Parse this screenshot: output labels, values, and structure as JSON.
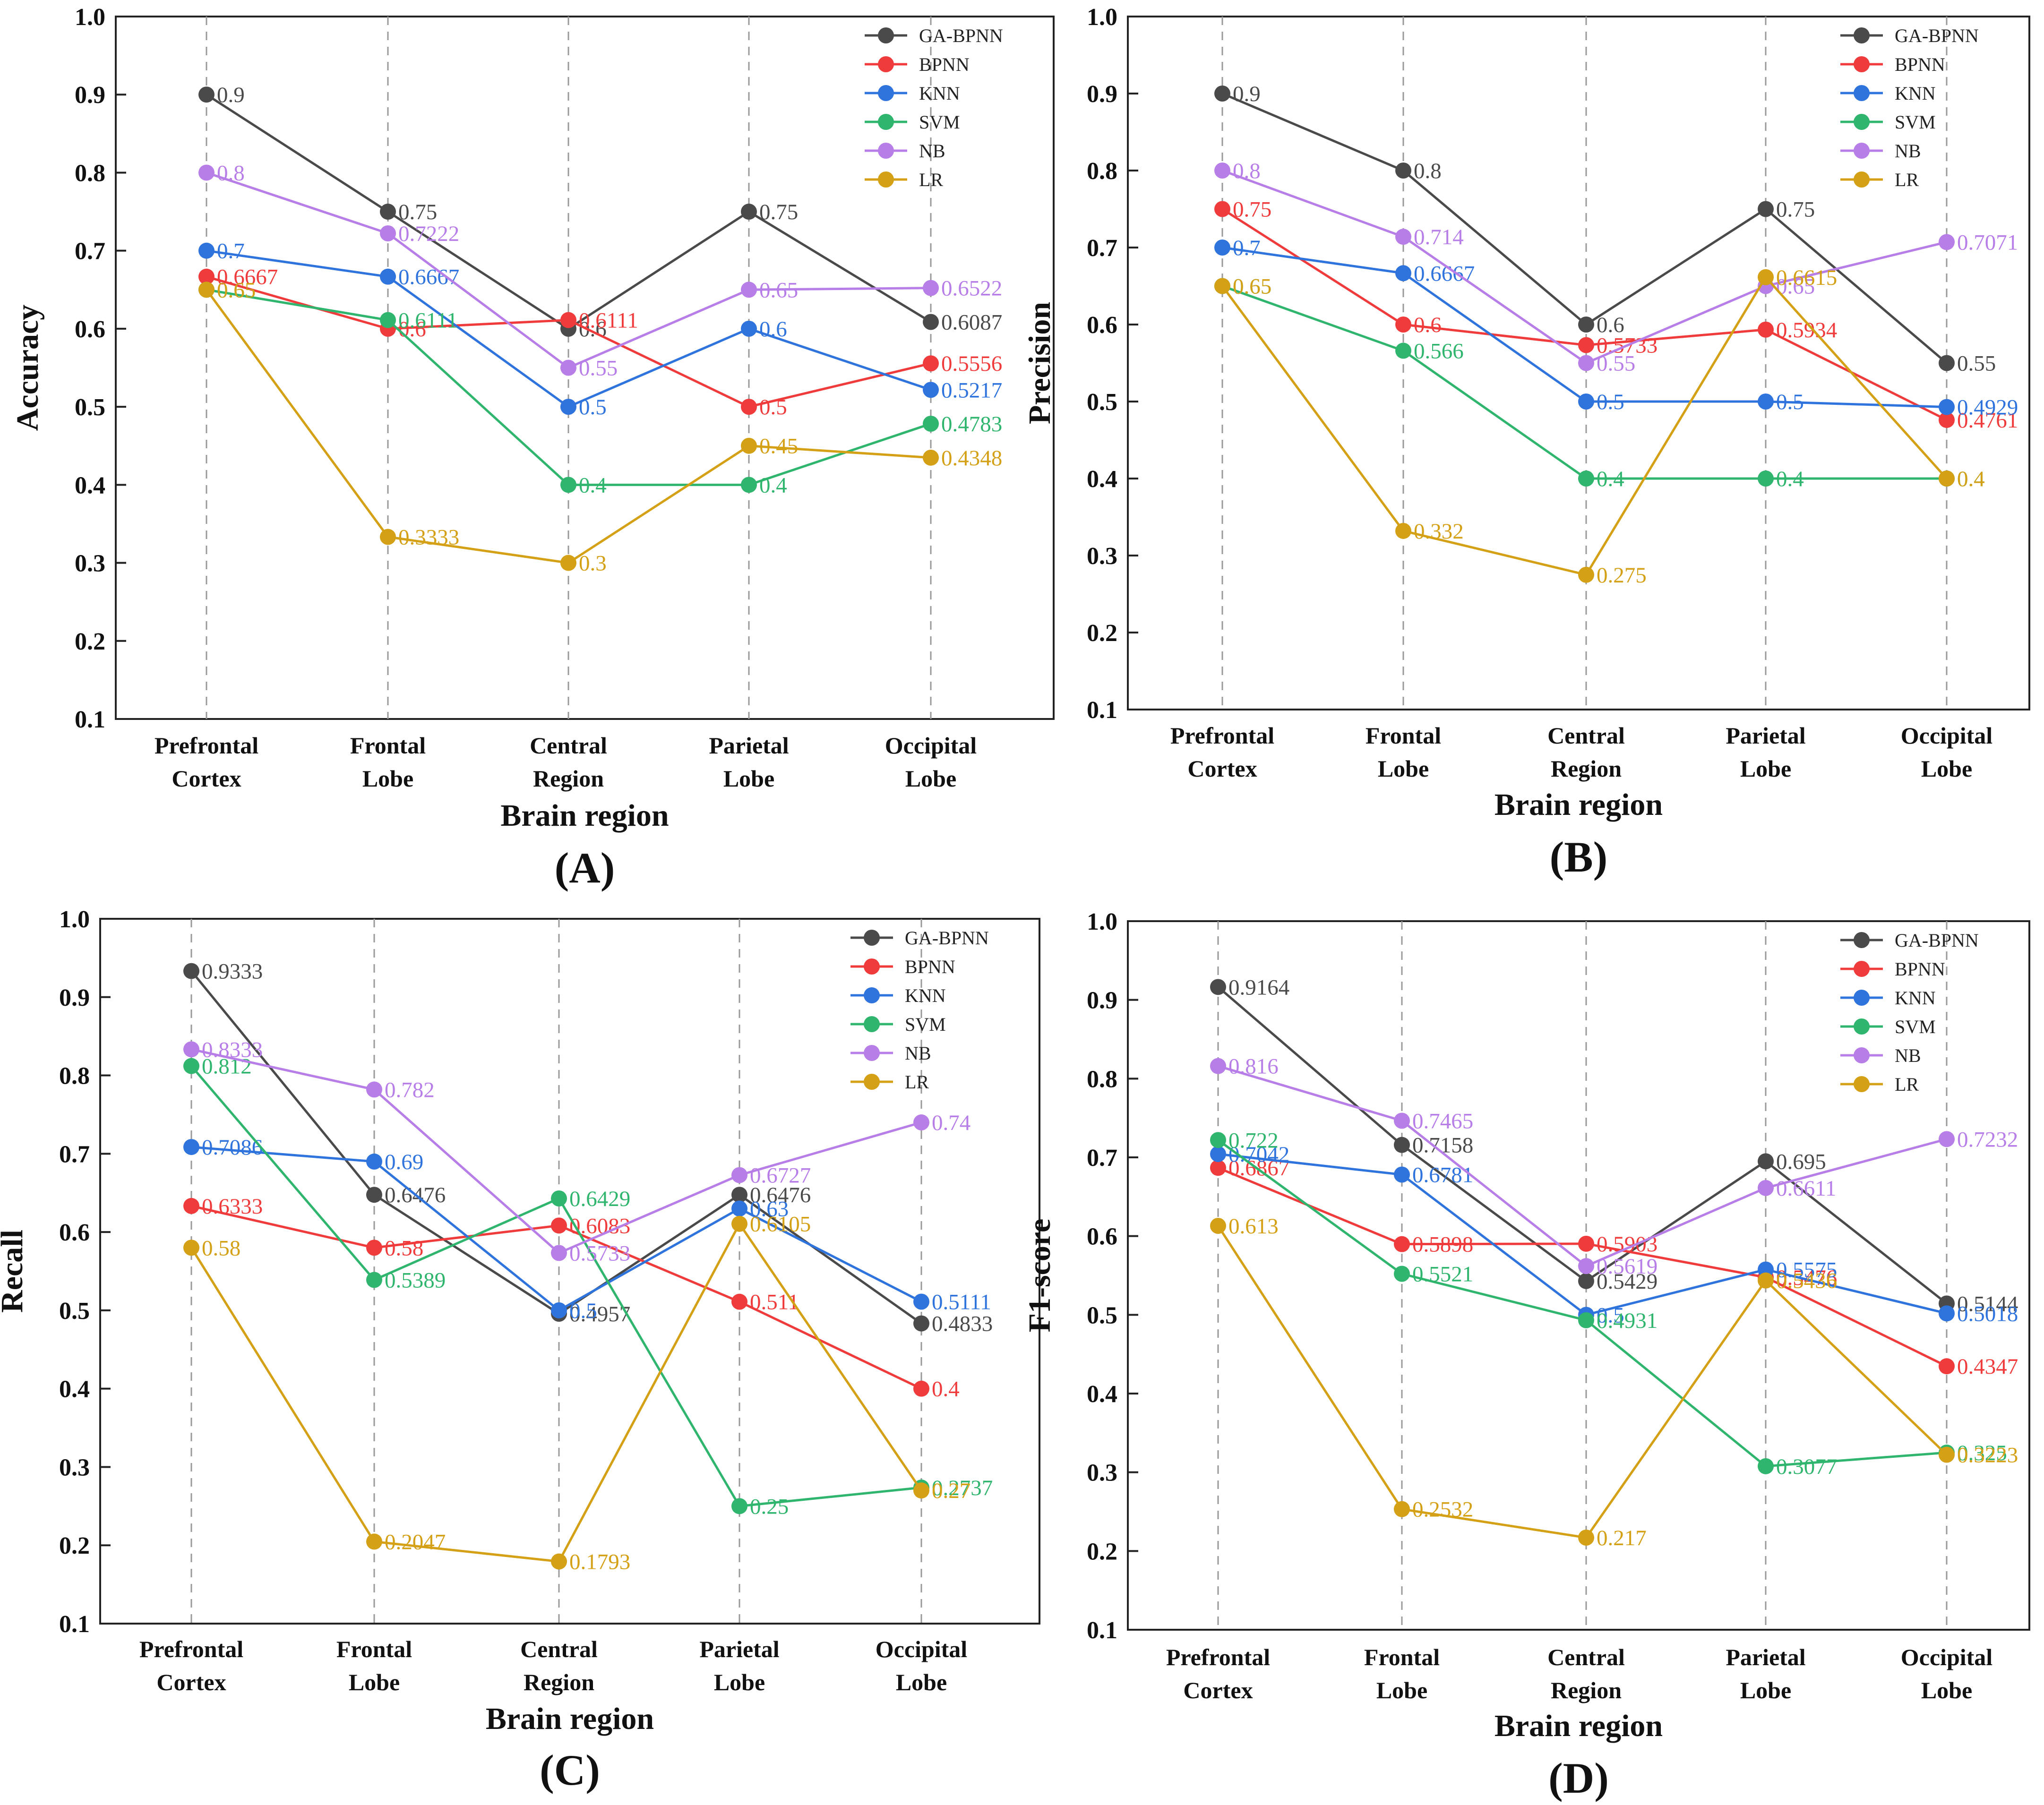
{
  "series_meta": [
    {
      "name": "GA-BPNN",
      "color": "#4a4a4a"
    },
    {
      "name": "BPNN",
      "color": "#ef3b3b"
    },
    {
      "name": "KNN",
      "color": "#2f73dc"
    },
    {
      "name": "SVM",
      "color": "#2fb56d"
    },
    {
      "name": "NB",
      "color": "#b77ee8"
    },
    {
      "name": "LR",
      "color": "#d4a016"
    }
  ],
  "chart_data": [
    {
      "type": "line",
      "panel_label": "(A)",
      "xlabel": "Brain region",
      "ylabel": "Accuracy",
      "ylim": [
        0.1,
        1.0
      ],
      "yticks": [
        "0.1",
        "0.2",
        "0.3",
        "0.4",
        "0.5",
        "0.6",
        "0.7",
        "0.8",
        "0.9",
        "1.0"
      ],
      "categories": [
        [
          "Prefrontal",
          "Cortex"
        ],
        [
          "Frontal",
          "Lobe"
        ],
        [
          "Central",
          "Region"
        ],
        [
          "Parietal",
          "Lobe"
        ],
        [
          "Occipital",
          "Lobe"
        ]
      ],
      "legend_position": "top-right",
      "series": [
        {
          "name": "GA-BPNN",
          "values": [
            0.9,
            0.75,
            0.6,
            0.75,
            0.6087
          ],
          "labels": [
            "0.9",
            "0.75",
            "0.6",
            "0.75",
            "0.6087"
          ]
        },
        {
          "name": "BPNN",
          "values": [
            0.6667,
            0.6,
            0.6111,
            0.5,
            0.5556
          ],
          "labels": [
            "0.6667",
            "0.6",
            "0.6111",
            "0.5",
            "0.5556"
          ]
        },
        {
          "name": "KNN",
          "values": [
            0.7,
            0.6667,
            0.5,
            0.6,
            0.5217
          ],
          "labels": [
            "0.7",
            "0.6667",
            "0.5",
            "0.6",
            "0.5217"
          ]
        },
        {
          "name": "SVM",
          "values": [
            0.65,
            0.6111,
            0.4,
            0.4,
            0.4783
          ],
          "labels": [
            "0.65",
            "0.6111",
            "0.4",
            "0.4",
            "0.4783"
          ]
        },
        {
          "name": "NB",
          "values": [
            0.8,
            0.7222,
            0.55,
            0.65,
            0.6522
          ],
          "labels": [
            "0.8",
            "0.7222",
            "0.55",
            "0.65",
            "0.6522"
          ]
        },
        {
          "name": "LR",
          "values": [
            0.65,
            0.3333,
            0.3,
            0.45,
            0.4348
          ],
          "labels": [
            "0.65",
            "0.3333",
            "0.3",
            "0.45",
            "0.4348"
          ]
        }
      ]
    },
    {
      "type": "line",
      "panel_label": "(B)",
      "xlabel": "Brain region",
      "ylabel": "Precision",
      "ylim": [
        0.1,
        1.0
      ],
      "yticks": [
        "0.1",
        "0.2",
        "0.3",
        "0.4",
        "0.5",
        "0.6",
        "0.7",
        "0.8",
        "0.9",
        "1.0"
      ],
      "categories": [
        [
          "Prefrontal",
          "Cortex"
        ],
        [
          "Frontal",
          "Lobe"
        ],
        [
          "Central",
          "Region"
        ],
        [
          "Parietal",
          "Lobe"
        ],
        [
          "Occipital",
          "Lobe"
        ]
      ],
      "legend_position": "top-right",
      "series": [
        {
          "name": "GA-BPNN",
          "values": [
            0.9,
            0.8,
            0.6,
            0.75,
            0.55
          ],
          "labels": [
            "0.9",
            "0.8",
            "0.6",
            "0.75",
            "0.55"
          ]
        },
        {
          "name": "BPNN",
          "values": [
            0.75,
            0.6,
            0.5733,
            0.5934,
            0.4761
          ],
          "labels": [
            "0.75",
            "0.6",
            "0.5733",
            "0.5934",
            "0.4761"
          ]
        },
        {
          "name": "KNN",
          "values": [
            0.7,
            0.6667,
            0.5,
            0.5,
            0.4929
          ],
          "labels": [
            "0.7",
            "0.6667",
            "0.5",
            "0.5",
            "0.4929"
          ]
        },
        {
          "name": "SVM",
          "values": [
            0.65,
            0.566,
            0.4,
            0.4,
            0.4
          ],
          "labels": [
            "0.65",
            "0.566",
            "0.4",
            "0.4",
            "0.4"
          ]
        },
        {
          "name": "NB",
          "values": [
            0.8,
            0.714,
            0.55,
            0.65,
            0.7071
          ],
          "labels": [
            "0.8",
            "0.714",
            "0.55",
            "0.65",
            "0.7071"
          ]
        },
        {
          "name": "LR",
          "values": [
            0.65,
            0.332,
            0.275,
            0.6615,
            0.4
          ],
          "labels": [
            "0.65",
            "0.332",
            "0.275",
            "0.6615",
            "0.4"
          ]
        }
      ]
    },
    {
      "type": "line",
      "panel_label": "(C)",
      "xlabel": "Brain region",
      "ylabel": "Recall",
      "ylim": [
        0.1,
        1.0
      ],
      "yticks": [
        "0.1",
        "0.2",
        "0.3",
        "0.4",
        "0.5",
        "0.6",
        "0.7",
        "0.8",
        "0.9",
        "1.0"
      ],
      "categories": [
        [
          "Prefrontal",
          "Cortex"
        ],
        [
          "Frontal",
          "Lobe"
        ],
        [
          "Central",
          "Region"
        ],
        [
          "Parietal",
          "Lobe"
        ],
        [
          "Occipital",
          "Lobe"
        ]
      ],
      "legend_position": "top-right",
      "series": [
        {
          "name": "GA-BPNN",
          "values": [
            0.9333,
            0.6476,
            0.4957,
            0.6476,
            0.4833
          ],
          "labels": [
            "0.9333",
            "0.6476",
            "0.4957",
            "0.6476",
            "0.4833"
          ]
        },
        {
          "name": "BPNN",
          "values": [
            0.6333,
            0.58,
            0.6083,
            0.511,
            0.4
          ],
          "labels": [
            "0.6333",
            "0.58",
            "0.6083",
            "0.511",
            "0.4"
          ]
        },
        {
          "name": "KNN",
          "values": [
            0.7086,
            0.69,
            0.5,
            0.63,
            0.5111
          ],
          "labels": [
            "0.7086",
            "0.69",
            "0.5",
            "0.63",
            "0.5111"
          ]
        },
        {
          "name": "SVM",
          "values": [
            0.812,
            0.5389,
            0.6429,
            0.25,
            0.2737
          ],
          "labels": [
            "0.812",
            "0.5389",
            "0.6429",
            "0.25",
            "0.2737"
          ]
        },
        {
          "name": "NB",
          "values": [
            0.8333,
            0.782,
            0.5733,
            0.6727,
            0.74
          ],
          "labels": [
            "0.8333",
            "0.782",
            "0.5733",
            "0.6727",
            "0.74"
          ]
        },
        {
          "name": "LR",
          "values": [
            0.58,
            0.2047,
            0.1793,
            0.6105,
            0.27
          ],
          "labels": [
            "0.58",
            "0.2047",
            "0.1793",
            "0.6105",
            "0.27"
          ]
        }
      ]
    },
    {
      "type": "line",
      "panel_label": "(D)",
      "xlabel": "Brain region",
      "ylabel": "F1-score",
      "ylim": [
        0.1,
        1.0
      ],
      "yticks": [
        "0.1",
        "0.2",
        "0.3",
        "0.4",
        "0.5",
        "0.6",
        "0.7",
        "0.8",
        "0.9",
        "1.0"
      ],
      "categories": [
        [
          "Prefrontal",
          "Cortex"
        ],
        [
          "Frontal",
          "Lobe"
        ],
        [
          "Central",
          "Region"
        ],
        [
          "Parietal",
          "Lobe"
        ],
        [
          "Occipital",
          "Lobe"
        ]
      ],
      "legend_position": "top-right",
      "series": [
        {
          "name": "GA-BPNN",
          "values": [
            0.9164,
            0.7158,
            0.5429,
            0.695,
            0.5144
          ],
          "labels": [
            "0.9164",
            "0.7158",
            "0.5429",
            "0.695",
            "0.5144"
          ]
        },
        {
          "name": "BPNN",
          "values": [
            0.6867,
            0.5898,
            0.5903,
            0.5476,
            0.4347
          ],
          "labels": [
            "0.6867",
            "0.5898",
            "0.5903",
            "0.5476",
            "0.4347"
          ]
        },
        {
          "name": "KNN",
          "values": [
            0.7042,
            0.6781,
            0.5,
            0.5575,
            0.5018
          ],
          "labels": [
            "0.7042",
            "0.6781",
            "0.5",
            "0.5575",
            "0.5018"
          ]
        },
        {
          "name": "SVM",
          "values": [
            0.722,
            0.5521,
            0.4931,
            0.3077,
            0.325
          ],
          "labels": [
            "0.722",
            "0.5521",
            "0.4931",
            "0.3077",
            "0.325"
          ]
        },
        {
          "name": "NB",
          "values": [
            0.816,
            0.7465,
            0.5619,
            0.6611,
            0.7232
          ],
          "labels": [
            "0.816",
            "0.7465",
            "0.5619",
            "0.6611",
            "0.7232"
          ]
        },
        {
          "name": "LR",
          "values": [
            0.613,
            0.2532,
            0.217,
            0.5436,
            0.3223
          ],
          "labels": [
            "0.613",
            "0.2532",
            "0.217",
            "0.5436",
            "0.3223"
          ]
        }
      ]
    }
  ]
}
